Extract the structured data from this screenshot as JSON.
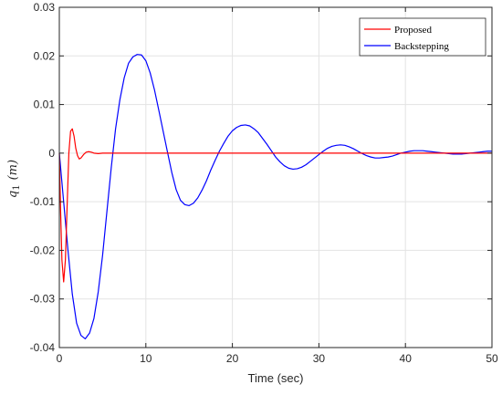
{
  "chart_data": {
    "type": "line",
    "xlabel": "Time (sec)",
    "ylabel": "q",
    "ylabel_subscript": "1",
    "ylabel_unit": "(m)",
    "xlim": [
      0,
      50
    ],
    "ylim": [
      -0.04,
      0.03
    ],
    "x_ticks": [
      0,
      10,
      20,
      30,
      40,
      50
    ],
    "y_ticks": [
      -0.04,
      -0.03,
      -0.02,
      -0.01,
      0,
      0.01,
      0.02,
      0.03
    ],
    "x_tick_labels": [
      "0",
      "10",
      "20",
      "30",
      "40",
      "50"
    ],
    "y_tick_labels": [
      "-0.04",
      "-0.03",
      "-0.02",
      "-0.01",
      "0",
      "0.01",
      "0.02",
      "0.03"
    ],
    "grid": true,
    "legend_position": "top-right",
    "series": [
      {
        "name": "Proposed",
        "color": "#ff0000",
        "x": [
          0,
          0.15,
          0.3,
          0.5,
          0.7,
          0.9,
          1.1,
          1.3,
          1.5,
          1.7,
          1.9,
          2.1,
          2.3,
          2.5,
          2.8,
          3.1,
          3.4,
          3.7,
          4.0,
          4.5,
          5.0,
          5.5,
          6.0,
          7.0,
          10,
          20,
          30,
          40,
          50
        ],
        "y": [
          0,
          -0.012,
          -0.022,
          -0.0265,
          -0.022,
          -0.011,
          0.0,
          0.0045,
          0.005,
          0.0035,
          0.001,
          -0.0005,
          -0.0012,
          -0.001,
          -0.0003,
          0.0002,
          0.0003,
          0.0002,
          0.0,
          -0.0001,
          0.0,
          0.0,
          0.0,
          0.0,
          0.0,
          0.0,
          0.0,
          0.0,
          0.0
        ]
      },
      {
        "name": "Backstepping",
        "color": "#0000ff",
        "x": [
          0,
          0.5,
          1.0,
          1.5,
          2.0,
          2.5,
          3.0,
          3.5,
          4.0,
          4.5,
          5.0,
          5.5,
          6.0,
          6.5,
          7.0,
          7.5,
          8.0,
          8.5,
          9.0,
          9.5,
          10.0,
          10.5,
          11.0,
          11.5,
          12.0,
          12.5,
          13.0,
          13.5,
          14.0,
          14.5,
          15.0,
          15.5,
          16.0,
          16.5,
          17.0,
          17.5,
          18.0,
          18.5,
          19.0,
          19.5,
          20.0,
          20.5,
          21.0,
          21.5,
          22.0,
          22.5,
          23.0,
          23.5,
          24.0,
          24.5,
          25.0,
          25.5,
          26.0,
          26.5,
          27.0,
          27.5,
          28.0,
          28.5,
          29.0,
          29.5,
          30.0,
          30.5,
          31.0,
          31.5,
          32.0,
          32.5,
          33.0,
          33.5,
          34.0,
          34.5,
          35.0,
          35.5,
          36.0,
          36.5,
          37.0,
          37.5,
          38.0,
          38.5,
          39.0,
          39.5,
          40.0,
          40.5,
          41.0,
          41.5,
          42.0,
          42.5,
          43.0,
          43.5,
          44.0,
          44.5,
          45.0,
          45.5,
          46.0,
          46.5,
          47.0,
          47.5,
          48.0,
          48.5,
          49.0,
          49.5,
          50.0
        ],
        "y": [
          0,
          -0.01,
          -0.02,
          -0.029,
          -0.035,
          -0.0375,
          -0.0382,
          -0.037,
          -0.034,
          -0.0285,
          -0.021,
          -0.012,
          -0.003,
          0.005,
          0.011,
          0.0155,
          0.0185,
          0.0198,
          0.0203,
          0.0202,
          0.019,
          0.0165,
          0.013,
          0.0088,
          0.0045,
          0.0002,
          -0.004,
          -0.0075,
          -0.0097,
          -0.0106,
          -0.0108,
          -0.0103,
          -0.0092,
          -0.0076,
          -0.0057,
          -0.0035,
          -0.0015,
          0.0004,
          0.002,
          0.0035,
          0.0046,
          0.0053,
          0.0057,
          0.0058,
          0.0056,
          0.005,
          0.0042,
          0.003,
          0.0018,
          0.0005,
          -0.0008,
          -0.0018,
          -0.0026,
          -0.0031,
          -0.0033,
          -0.0032,
          -0.0029,
          -0.0024,
          -0.0017,
          -0.001,
          -0.0003,
          0.0004,
          0.001,
          0.0014,
          0.0016,
          0.0017,
          0.0016,
          0.0013,
          0.0009,
          0.0004,
          -0.0001,
          -0.0005,
          -0.0008,
          -0.001,
          -0.001,
          -0.0009,
          -0.0008,
          -0.0006,
          -0.0003,
          0.0,
          0.0002,
          0.0004,
          0.0005,
          0.0005,
          0.0005,
          0.0004,
          0.0003,
          0.0002,
          0.0001,
          0.0,
          -0.0001,
          -0.0002,
          -0.0002,
          -0.0002,
          -0.0001,
          0.0,
          0.0001,
          0.0002,
          0.0003,
          0.0004,
          0.0004
        ]
      }
    ]
  }
}
